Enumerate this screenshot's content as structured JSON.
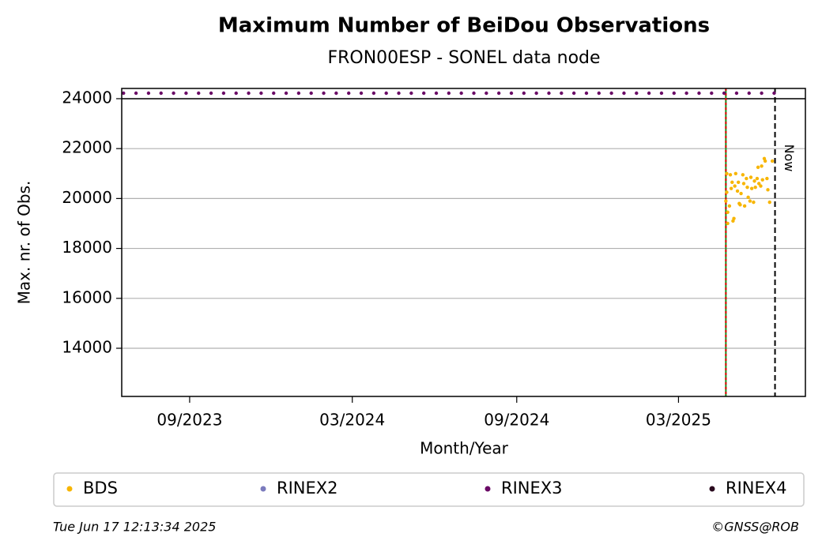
{
  "chart_data": {
    "type": "scatter",
    "title": "Maximum Number of BeiDou Observations",
    "subtitle": "FRON00ESP - SONEL data node",
    "xlabel": "Month/Year",
    "ylabel": "Max. nr. of Obs.",
    "xlim": [
      "2023-06-17",
      "2025-07-21"
    ],
    "xticks": [
      {
        "value": "2023-09-01",
        "label": "09/2023"
      },
      {
        "value": "2024-03-01",
        "label": "03/2024"
      },
      {
        "value": "2024-09-01",
        "label": "09/2024"
      },
      {
        "value": "2025-03-01",
        "label": "03/2025"
      }
    ],
    "ylim": [
      12070,
      24410
    ],
    "yticks": [
      14000,
      16000,
      18000,
      20000,
      22000,
      24000
    ],
    "grid": true,
    "hline": 24000,
    "start_line": "2025-04-23",
    "now": {
      "x": "2025-06-17",
      "label": "Now"
    },
    "legend": "bottom",
    "series": [
      {
        "name": "BDS",
        "color": "#f7b500",
        "x": [
          "2025-04-23",
          "2025-04-24",
          "2025-04-24",
          "2025-04-25",
          "2025-04-25",
          "2025-04-27",
          "2025-04-28",
          "2025-04-29",
          "2025-04-30",
          "2025-05-01",
          "2025-05-02",
          "2025-05-03",
          "2025-05-04",
          "2025-05-06",
          "2025-05-07",
          "2025-05-08",
          "2025-05-09",
          "2025-05-10",
          "2025-05-12",
          "2025-05-13",
          "2025-05-14",
          "2025-05-16",
          "2025-05-17",
          "2025-05-18",
          "2025-05-20",
          "2025-05-21",
          "2025-05-22",
          "2025-05-24",
          "2025-05-25",
          "2025-05-26",
          "2025-05-28",
          "2025-05-29",
          "2025-05-30",
          "2025-06-01",
          "2025-06-02",
          "2025-06-03",
          "2025-06-05",
          "2025-06-06",
          "2025-06-08",
          "2025-06-09",
          "2025-06-11",
          "2025-06-14"
        ],
        "values": [
          19900,
          21000,
          20250,
          19000,
          19450,
          19700,
          20950,
          20400,
          20650,
          19100,
          19200,
          20500,
          21000,
          20300,
          20650,
          19800,
          19750,
          20200,
          20950,
          20600,
          19700,
          20800,
          20450,
          20050,
          19900,
          20850,
          20400,
          19850,
          20700,
          20450,
          20800,
          21250,
          20600,
          20500,
          21300,
          20750,
          21600,
          21500,
          20800,
          20350,
          19850,
          21500
        ]
      },
      {
        "name": "RINEX2",
        "color": "#7b7bbd",
        "x": [],
        "values": []
      },
      {
        "name": "RINEX3",
        "color": "#6a0a66",
        "x": [
          "2023-06-19",
          "2023-07-03",
          "2023-07-17",
          "2023-07-31",
          "2023-08-14",
          "2023-08-28",
          "2023-09-11",
          "2023-09-25",
          "2023-10-09",
          "2023-10-23",
          "2023-11-06",
          "2023-11-20",
          "2023-12-04",
          "2023-12-18",
          "2024-01-01",
          "2024-01-15",
          "2024-01-29",
          "2024-02-12",
          "2024-02-26",
          "2024-03-11",
          "2024-03-25",
          "2024-04-08",
          "2024-04-22",
          "2024-05-06",
          "2024-05-20",
          "2024-06-03",
          "2024-06-17",
          "2024-07-01",
          "2024-07-15",
          "2024-07-29",
          "2024-08-12",
          "2024-08-26",
          "2024-09-09",
          "2024-09-23",
          "2024-10-07",
          "2024-10-21",
          "2024-11-04",
          "2024-11-18",
          "2024-12-02",
          "2024-12-16",
          "2024-12-30",
          "2025-01-13",
          "2025-01-27",
          "2025-02-10",
          "2025-02-24",
          "2025-03-10",
          "2025-03-24",
          "2025-04-07",
          "2025-04-21",
          "2025-05-05",
          "2025-05-19",
          "2025-06-02",
          "2025-06-16"
        ],
        "values": [
          24220,
          24220,
          24220,
          24220,
          24220,
          24220,
          24220,
          24220,
          24220,
          24220,
          24220,
          24220,
          24220,
          24220,
          24220,
          24220,
          24220,
          24220,
          24220,
          24220,
          24220,
          24220,
          24220,
          24220,
          24220,
          24220,
          24220,
          24220,
          24220,
          24220,
          24220,
          24220,
          24220,
          24220,
          24220,
          24220,
          24220,
          24220,
          24220,
          24220,
          24220,
          24220,
          24220,
          24220,
          24220,
          24220,
          24220,
          24220,
          24220,
          24220,
          24220,
          24220,
          24220
        ]
      },
      {
        "name": "RINEX4",
        "color": "#2a0a1e",
        "x": [],
        "values": []
      }
    ],
    "footer_left": "Tue Jun 17 12:13:34 2025",
    "footer_right": "©GNSS@ROB"
  }
}
